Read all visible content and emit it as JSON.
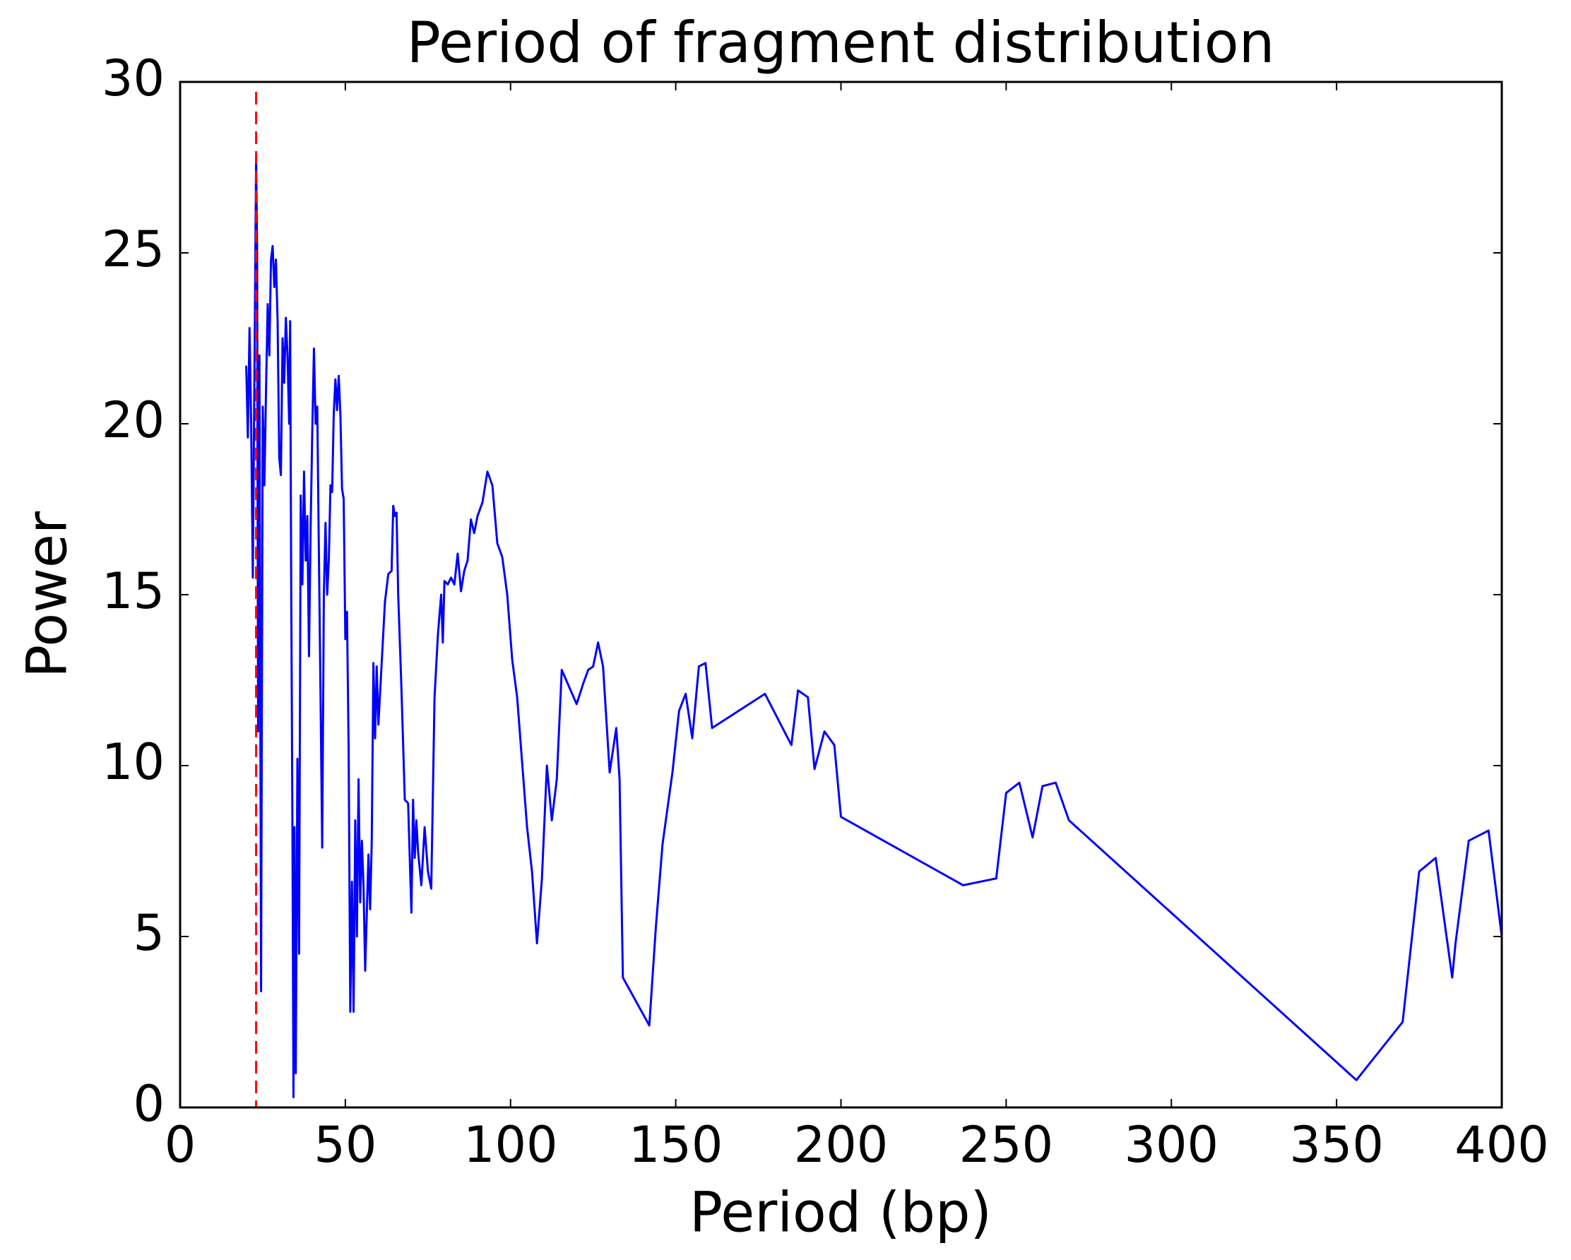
{
  "chart_data": {
    "type": "line",
    "title": "Period of fragment distribution",
    "x_label": "Period (bp)",
    "y_label": "Power",
    "xlim": [
      0,
      400
    ],
    "ylim": [
      0,
      30
    ],
    "xticks": [
      0,
      50,
      100,
      150,
      200,
      250,
      300,
      350,
      400
    ],
    "yticks": [
      0,
      5,
      10,
      15,
      20,
      25,
      30
    ],
    "grid": false,
    "vline": {
      "x": 23,
      "color": "#ff0000",
      "style": "dashed"
    },
    "series": [
      {
        "color": "#0000ff",
        "x": [
          20,
          20.5,
          21,
          21.5,
          22,
          22.5,
          23,
          23.3,
          23.6,
          24,
          24.5,
          25,
          25.5,
          26,
          26.5,
          27,
          27.5,
          28,
          28.5,
          29,
          29.5,
          30,
          30.5,
          31,
          31.5,
          32,
          32.5,
          33,
          33.3,
          33.6,
          34,
          34.3,
          34.6,
          35,
          35.5,
          36,
          36.5,
          37,
          37.5,
          38,
          38.5,
          39,
          39.5,
          40,
          40.5,
          41,
          41.5,
          42,
          42.5,
          43,
          43.5,
          44,
          44.5,
          45,
          45.5,
          46,
          46.5,
          47,
          47.5,
          48,
          48.5,
          49,
          49.5,
          50,
          50.5,
          51,
          51.5,
          52,
          52.5,
          53,
          53.5,
          54,
          54.5,
          55,
          55.5,
          56,
          57,
          57.5,
          58,
          58.5,
          59,
          59.5,
          60,
          61,
          62,
          63,
          64,
          64.5,
          65,
          65.5,
          66,
          67,
          68,
          69,
          70,
          70.5,
          71,
          71.5,
          72,
          73,
          74,
          75,
          76,
          77,
          78,
          79,
          79.5,
          80,
          81,
          82,
          83,
          84,
          85,
          86,
          87,
          88,
          89,
          90,
          91.5,
          93,
          94.5,
          96,
          97.5,
          99,
          100.5,
          102,
          105,
          106.5,
          108,
          109.5,
          111,
          112.5,
          114,
          115.5,
          120,
          122,
          123.5,
          125,
          126.5,
          128,
          130,
          132,
          133,
          134,
          142,
          144,
          146,
          149,
          151,
          153,
          155,
          157,
          159,
          161,
          177,
          185,
          187,
          190,
          192,
          195,
          198,
          200,
          237,
          247,
          250,
          254,
          258,
          261,
          265,
          269,
          356,
          370,
          375,
          380,
          385,
          386,
          390,
          396,
          400
        ],
        "values": [
          21.7,
          19.6,
          22.8,
          20,
          15.5,
          21.5,
          27.8,
          25,
          11,
          22,
          3.4,
          20.5,
          18.2,
          21,
          23.5,
          22,
          24.8,
          25.2,
          24,
          24.8,
          23,
          19,
          18.5,
          22.5,
          21.2,
          23.1,
          22,
          20,
          23,
          15.7,
          8,
          0.3,
          8.2,
          1,
          10.2,
          4.5,
          17.9,
          15.3,
          18.6,
          16,
          17.3,
          13.2,
          17,
          19.8,
          22.2,
          20,
          20.5,
          16.2,
          12,
          7.6,
          15,
          17.1,
          15,
          16,
          18.2,
          18,
          20.3,
          21.3,
          20.4,
          21.4,
          20.3,
          18.1,
          17.8,
          13.7,
          14.5,
          10.5,
          2.8,
          6.6,
          2.8,
          8.4,
          5,
          9.6,
          6,
          7.8,
          6.5,
          4,
          7.4,
          5.8,
          7.8,
          13,
          10.8,
          12.9,
          11.2,
          13,
          14.8,
          15.6,
          15.7,
          17.6,
          17.3,
          17.4,
          15,
          12.2,
          9,
          8.9,
          5.7,
          9,
          7.3,
          8.4,
          7.5,
          6.5,
          8.2,
          6.9,
          6.4,
          12,
          13.8,
          15,
          13.6,
          15.4,
          15.3,
          15.5,
          15.3,
          16.2,
          15.1,
          15.7,
          16,
          17.2,
          16.8,
          17.3,
          17.7,
          18.6,
          18.2,
          16.5,
          16.1,
          15,
          13.1,
          12,
          8.2,
          6.9,
          4.8,
          6.7,
          10,
          8.4,
          9.6,
          12.8,
          11.8,
          12.4,
          12.8,
          12.9,
          13.6,
          12.9,
          9.8,
          11.1,
          9.6,
          3.8,
          2.4,
          5.3,
          7.7,
          9.8,
          11.6,
          12.1,
          10.8,
          12.9,
          13,
          11.1,
          12.1,
          10.6,
          12.2,
          12,
          9.9,
          11,
          10.6,
          8.5,
          6.5,
          6.7,
          9.2,
          9.5,
          7.9,
          9.4,
          9.5,
          8.4,
          0.8,
          2.5,
          6.9,
          7.3,
          3.8,
          4.8,
          7.8,
          8.1,
          5
        ]
      }
    ]
  }
}
